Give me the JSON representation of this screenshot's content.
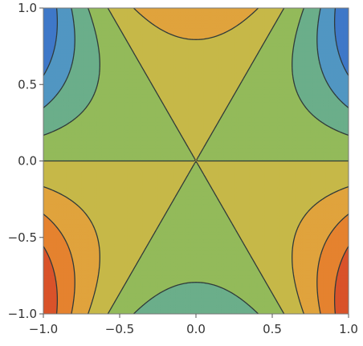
{
  "chart_data": {
    "type": "contour",
    "function": "y^3 - 3*x^2*y",
    "title": "",
    "xlabel": "",
    "ylabel": "",
    "xlim": [
      -1,
      1
    ],
    "ylim": [
      -1,
      1
    ],
    "grid": false,
    "legend": "none",
    "x_ticks": [
      {
        "value": -1.0,
        "label": "−1.0"
      },
      {
        "value": -0.5,
        "label": "−0.5"
      },
      {
        "value": 0.0,
        "label": "0.0"
      },
      {
        "value": 0.5,
        "label": "0.5"
      },
      {
        "value": 1.0,
        "label": "1.0"
      }
    ],
    "y_ticks": [
      {
        "value": -1.0,
        "label": "−1.0"
      },
      {
        "value": -0.5,
        "label": "−0.5"
      },
      {
        "value": 0.0,
        "label": "0.0"
      },
      {
        "value": 0.5,
        "label": "0.5"
      },
      {
        "value": 1.0,
        "label": "1.0"
      }
    ],
    "contour_levels": [
      -2.5,
      -2.0,
      -1.5,
      -1.0,
      -0.5,
      0.0,
      0.5,
      1.0,
      1.5,
      2.0,
      2.5
    ],
    "band_colors": [
      "#6a2a8a",
      "#4453b4",
      "#3f78c8",
      "#5196c2",
      "#6bae8a",
      "#93ba5a",
      "#c6b848",
      "#e0a33d",
      "#e5822f",
      "#d9532a"
    ]
  }
}
